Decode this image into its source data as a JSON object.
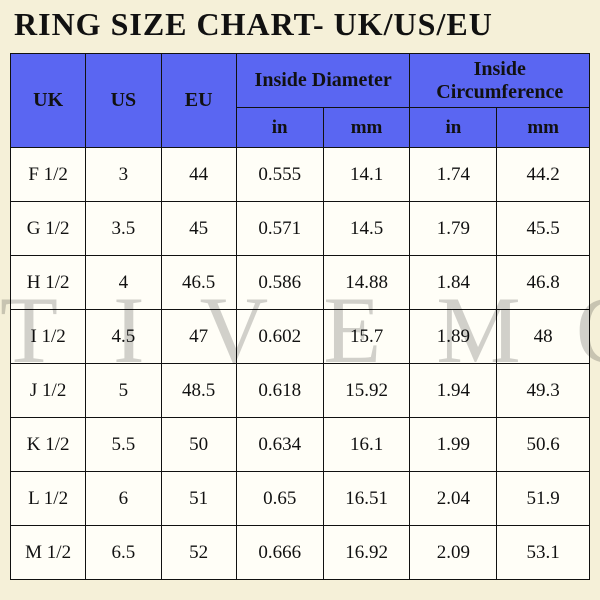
{
  "title": "RING SIZE CHART- UK/US/EU",
  "watermark_text": "TIVEMO",
  "header_bg": "#5a66f2",
  "cell_bg": "#fffef7",
  "page_bg": "#f5f0d8",
  "border_color": "#111111",
  "columns": {
    "uk": "UK",
    "us": "US",
    "eu": "EU",
    "diameter_group": "Inside Diameter",
    "circumference_group": "Inside Circumference",
    "in": "in",
    "mm": "mm"
  },
  "rows": [
    {
      "uk": "F 1/2",
      "us": "3",
      "eu": "44",
      "din": "0.555",
      "dmm": "14.1",
      "cin": "1.74",
      "cmm": "44.2"
    },
    {
      "uk": "G 1/2",
      "us": "3.5",
      "eu": "45",
      "din": "0.571",
      "dmm": "14.5",
      "cin": "1.79",
      "cmm": "45.5"
    },
    {
      "uk": "H 1/2",
      "us": "4",
      "eu": "46.5",
      "din": "0.586",
      "dmm": "14.88",
      "cin": "1.84",
      "cmm": "46.8"
    },
    {
      "uk": "I 1/2",
      "us": "4.5",
      "eu": "47",
      "din": "0.602",
      "dmm": "15.7",
      "cin": "1.89",
      "cmm": "48"
    },
    {
      "uk": "J 1/2",
      "us": "5",
      "eu": "48.5",
      "din": "0.618",
      "dmm": "15.92",
      "cin": "1.94",
      "cmm": "49.3"
    },
    {
      "uk": "K 1/2",
      "us": "5.5",
      "eu": "50",
      "din": "0.634",
      "dmm": "16.1",
      "cin": "1.99",
      "cmm": "50.6"
    },
    {
      "uk": "L 1/2",
      "us": "6",
      "eu": "51",
      "din": "0.65",
      "dmm": "16.51",
      "cin": "2.04",
      "cmm": "51.9"
    },
    {
      "uk": "M 1/2",
      "us": "6.5",
      "eu": "52",
      "din": "0.666",
      "dmm": "16.92",
      "cin": "2.09",
      "cmm": "53.1"
    }
  ]
}
